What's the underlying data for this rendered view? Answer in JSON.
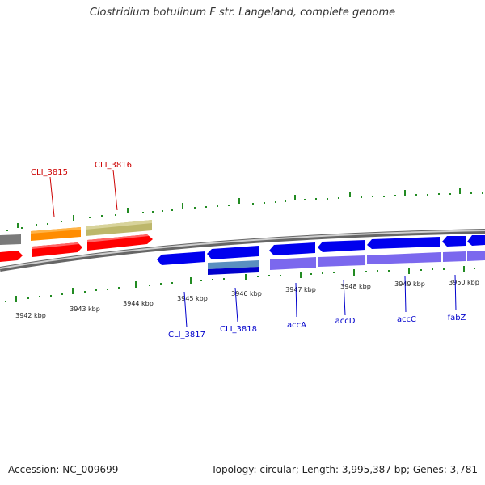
{
  "title": "Clostridium botulinum F str. Langeland, complete genome",
  "footer": {
    "accession": "Accession: NC_009699",
    "summary": "Topology: circular; Length: 3,995,387 bp; Genes: 3,781"
  },
  "ruler": {
    "tick_labels": [
      "3942 kbp",
      "3943 kbp",
      "3944 kbp",
      "3945 kbp",
      "3946 kbp",
      "3947 kbp",
      "3948 kbp",
      "3949 kbp",
      "3950 kbp"
    ]
  },
  "genes": {
    "top_labels": [
      "CLI_3815",
      "CLI_3816"
    ],
    "bottom_labels": [
      "CLI_3817",
      "CLI_3818",
      "accA",
      "accD",
      "accC",
      "fabZ"
    ]
  },
  "colors": {
    "forward_cds": "#ff0000",
    "forward_gene": "#ff8c00",
    "forward_gene_alt": "#bdb76b",
    "reverse_cds": "#0000ee",
    "reverse_gene": "#7b68ee",
    "reverse_rna": "#4682b4",
    "backbone": "#888888",
    "ticks": "#228b22",
    "label_forward": "#cc0000",
    "label_reverse": "#0000cc"
  }
}
